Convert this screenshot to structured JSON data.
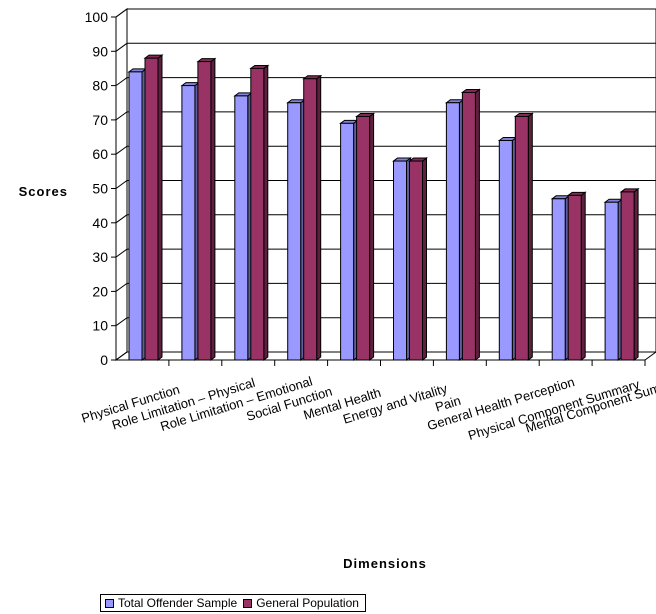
{
  "chart_data": {
    "type": "bar",
    "title": "",
    "xlabel": "Dimensions",
    "ylabel": "Scores",
    "ylim": [
      0,
      100
    ],
    "yticks": [
      0,
      10,
      20,
      30,
      40,
      50,
      60,
      70,
      80,
      90,
      100
    ],
    "grid": true,
    "three_d": true,
    "legend_position": "bottom",
    "categories": [
      "Physical Function",
      "Role Limitation – Physical",
      "Role Limitation – Emotional",
      "Social Function",
      "Mental Health",
      "Energy and Vitality",
      "Pain",
      "General Health Perception",
      "Physical Component Summary",
      "Mental Component Summary"
    ],
    "series": [
      {
        "name": "Total Offender Sample",
        "color": "#9999ff",
        "values": [
          84,
          80,
          77,
          75,
          69,
          58,
          75,
          64,
          47,
          46
        ]
      },
      {
        "name": "General Population",
        "color": "#993366",
        "values": [
          88,
          87,
          85,
          82,
          71,
          58,
          78,
          71,
          48,
          49
        ]
      }
    ]
  }
}
